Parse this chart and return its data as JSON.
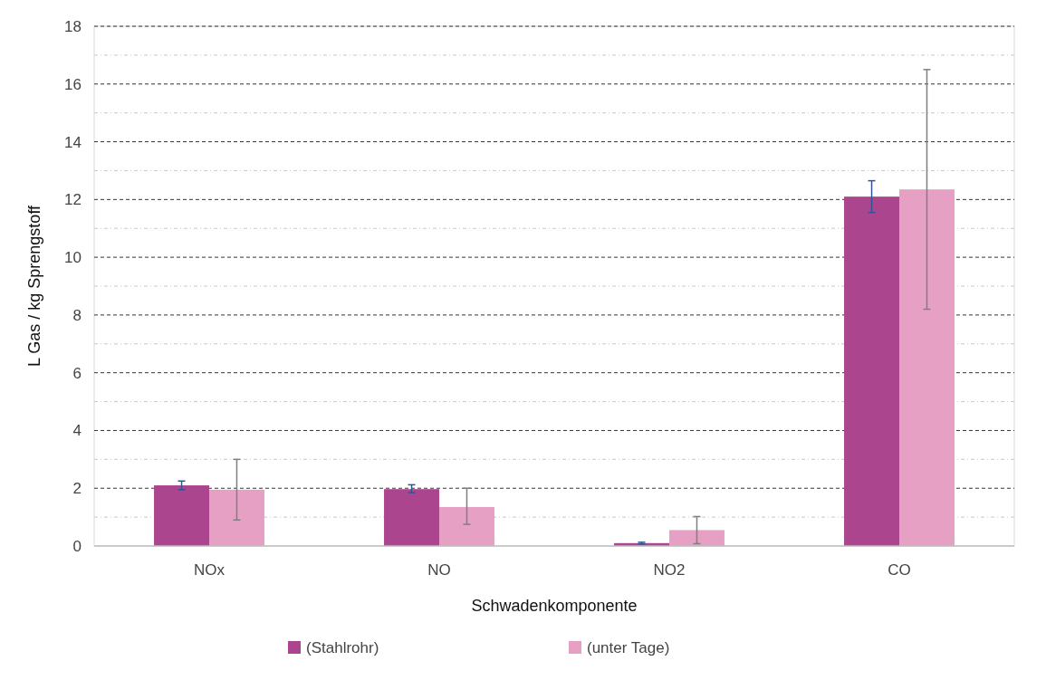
{
  "chart_data": {
    "type": "bar",
    "xlabel": "Schwadenkomponente",
    "ylabel": "L Gas / kg Sprengstoff",
    "categories": [
      "NOx",
      "NO",
      "NO2",
      "CO"
    ],
    "series": [
      {
        "name": "(Stahlrohr)",
        "color": "#ab468e",
        "values": [
          2.1,
          1.97,
          0.1,
          12.1
        ],
        "errors": [
          [
            1.95,
            2.25
          ],
          [
            1.85,
            2.12
          ],
          [
            0.07,
            0.13
          ],
          [
            11.55,
            12.65
          ]
        ]
      },
      {
        "name": "(unter Tage)",
        "color": "#e6a0c4",
        "values": [
          1.95,
          1.35,
          0.55,
          12.35
        ],
        "errors": [
          [
            0.9,
            3.0
          ],
          [
            0.75,
            2.0
          ],
          [
            0.08,
            1.02
          ],
          [
            8.2,
            16.5
          ]
        ]
      }
    ],
    "ylim": [
      0,
      18
    ],
    "yticks": [
      0,
      2,
      4,
      6,
      8,
      10,
      12,
      14,
      16,
      18
    ],
    "grid": "y",
    "legend": "bottom"
  }
}
